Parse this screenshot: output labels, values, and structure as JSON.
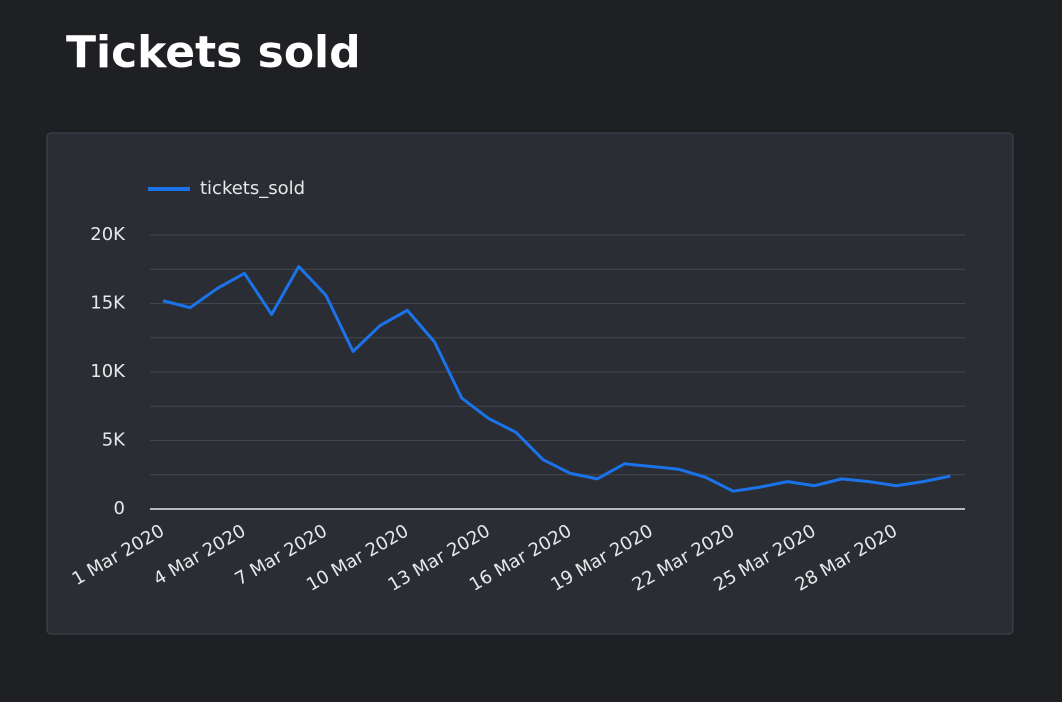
{
  "chart_data": {
    "type": "line",
    "title": "Tickets sold",
    "categories": [
      "1 Mar 2020",
      null,
      null,
      "4 Mar 2020",
      null,
      null,
      "7 Mar 2020",
      null,
      null,
      "10 Mar 2020",
      null,
      null,
      "13 Mar 2020",
      null,
      null,
      "16 Mar 2020",
      null,
      null,
      "19 Mar 2020",
      null,
      null,
      "22 Mar 2020",
      null,
      null,
      "25 Mar 2020",
      null,
      null,
      "28 Mar 2020",
      null,
      null
    ],
    "series": [
      {
        "name": "tickets_sold",
        "color": "#1a73e8",
        "values": [
          15200,
          14700,
          16100,
          17200,
          14200,
          17700,
          15600,
          11500,
          13400,
          14500,
          12200,
          8100,
          6600,
          5600,
          3600,
          2600,
          2200,
          3300,
          3100,
          2900,
          2300,
          1300,
          1600,
          2000,
          1700,
          2200,
          2000,
          1700,
          2000,
          2400
        ]
      }
    ],
    "ylim": [
      0,
      20000
    ],
    "yticks": [
      0,
      {
        "value": 5000,
        "label": "5K"
      },
      {
        "value": 10000,
        "label": "10K"
      },
      {
        "value": 15000,
        "label": "15K"
      },
      {
        "value": 20000,
        "label": "20K"
      }
    ],
    "minor_yticks": [
      2500,
      7500,
      12500,
      17500
    ],
    "grid": true,
    "legend": "top-left"
  }
}
